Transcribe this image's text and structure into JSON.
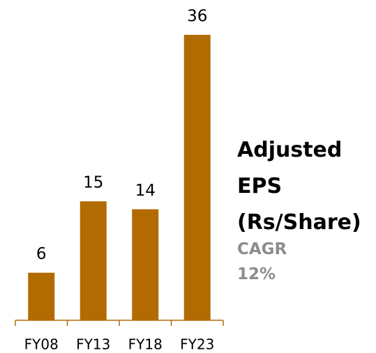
{
  "chart_data": {
    "type": "bar",
    "title": "Adjusted EPS (Rs/Share)",
    "annotation": "CAGR 12%",
    "categories": [
      "FY08",
      "FY13",
      "FY18",
      "FY23"
    ],
    "values": [
      6,
      15,
      14,
      36
    ],
    "color": "#b26b00"
  }
}
